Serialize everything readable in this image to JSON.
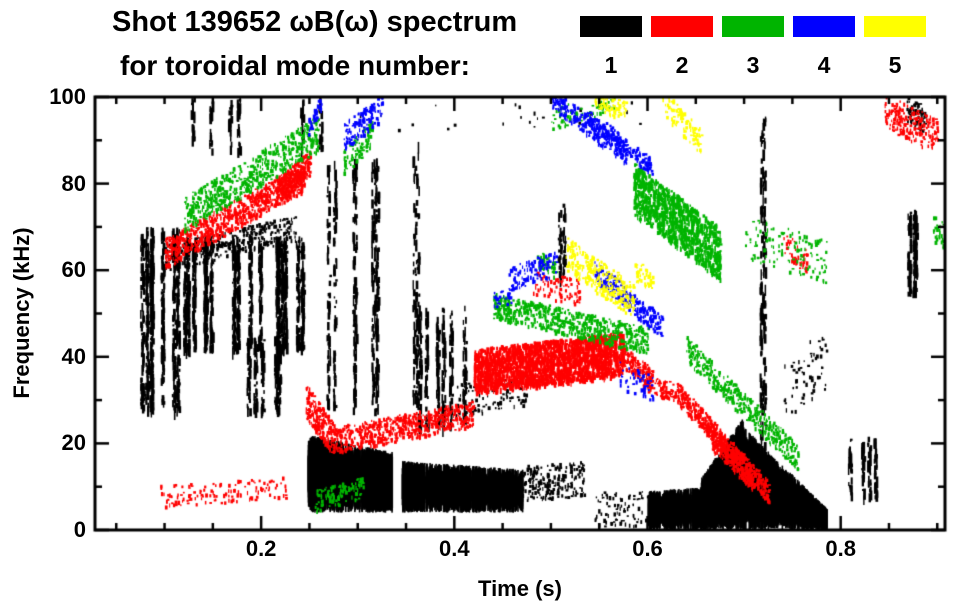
{
  "chart_data": {
    "type": "scatter",
    "subtype": "mode-spectrogram",
    "title": "Shot 139652 ωB(ω) spectrum",
    "subtitle": "for toroidal mode number:",
    "xlabel": "Time (s)",
    "ylabel": "Frequency (kHz)",
    "xlim": [
      0.028,
      0.908
    ],
    "ylim": [
      0,
      100
    ],
    "grid": false,
    "legend_position": "top-right",
    "xticks": [
      {
        "v": 0.2,
        "label": "0.2"
      },
      {
        "v": 0.4,
        "label": "0.4"
      },
      {
        "v": 0.6,
        "label": "0.6"
      },
      {
        "v": 0.8,
        "label": "0.8"
      }
    ],
    "yticks": [
      {
        "v": 0,
        "label": "0"
      },
      {
        "v": 20,
        "label": "20"
      },
      {
        "v": 40,
        "label": "40"
      },
      {
        "v": 60,
        "label": "60"
      },
      {
        "v": 80,
        "label": "80"
      },
      {
        "v": 100,
        "label": "100"
      }
    ],
    "x_minor_step": 0.05,
    "y_minor_step": 10,
    "legend": [
      {
        "label": "1",
        "color": "#000000"
      },
      {
        "label": "2",
        "color": "#ff0000"
      },
      {
        "label": "3",
        "color": "#00b400"
      },
      {
        "label": "4",
        "color": "#0000ff"
      },
      {
        "label": "5",
        "color": "#ffff00"
      }
    ],
    "series": [
      {
        "name": "toroidal mode n=1",
        "color": "#000000",
        "segments": [
          {
            "kind": "streaks",
            "t": [
              0.075,
              0.118
            ],
            "f": [
              28,
              70
            ],
            "n": 7,
            "per": 90
          },
          {
            "kind": "streaks",
            "t": [
              0.118,
              0.245
            ],
            "f": [
              42,
              68
            ],
            "n": 16,
            "per": 70
          },
          {
            "kind": "speckle",
            "t": [
              0.1,
              0.235
            ],
            "f": [
              63,
              70
            ],
            "w": 3,
            "n": 350
          },
          {
            "kind": "streaks",
            "t": [
              0.185,
              0.245
            ],
            "f": [
              28,
              45
            ],
            "n": 5,
            "per": 40
          },
          {
            "kind": "streaks",
            "t": [
              0.09,
              0.27
            ],
            "f": [
              88,
              100
            ],
            "n": 6,
            "per": 18
          },
          {
            "kind": "blob",
            "t": [
              0.248,
              0.335
            ],
            "lo": [
              4,
              4
            ],
            "hi": [
              22,
              18
            ],
            "n": 900
          },
          {
            "kind": "blob",
            "t": [
              0.345,
              0.47
            ],
            "lo": [
              4,
              4
            ],
            "hi": [
              16,
              14
            ],
            "n": 900
          },
          {
            "kind": "speckle",
            "t": [
              0.47,
              0.535
            ],
            "f": [
              11,
              12
            ],
            "w": 4,
            "n": 200
          },
          {
            "kind": "streaks",
            "t": [
              0.252,
              0.335
            ],
            "f": [
              28,
              86
            ],
            "n": 7,
            "per": 55
          },
          {
            "kind": "streaks",
            "t": [
              0.355,
              0.41
            ],
            "f": [
              24,
              52
            ],
            "n": 6,
            "per": 45
          },
          {
            "kind": "streaks",
            "t": [
              0.356,
              0.368
            ],
            "f": [
              30,
              90
            ],
            "n": 2,
            "per": 50
          },
          {
            "kind": "speckle",
            "t": [
              0.4,
              0.475
            ],
            "f": [
              30,
              33
            ],
            "w": 4,
            "n": 120
          },
          {
            "kind": "speckle",
            "t": [
              0.545,
              0.6
            ],
            "f": [
              5,
              5
            ],
            "w": 4,
            "n": 80
          },
          {
            "kind": "blob",
            "t": [
              0.6,
              0.66
            ],
            "lo": [
              0,
              0
            ],
            "hi": [
              9,
              10
            ],
            "n": 500
          },
          {
            "kind": "blob",
            "t": [
              0.655,
              0.698
            ],
            "lo": [
              0,
              0
            ],
            "hi": [
              12,
              26
            ],
            "n": 650
          },
          {
            "kind": "blob",
            "t": [
              0.698,
              0.785
            ],
            "lo": [
              0,
              0
            ],
            "hi": [
              24,
              5
            ],
            "n": 800
          },
          {
            "kind": "streaks",
            "t": [
              0.715,
              0.728
            ],
            "f": [
              4,
              96
            ],
            "n": 2,
            "per": 90
          },
          {
            "kind": "speckle",
            "t": [
              0.74,
              0.785
            ],
            "f": [
              32,
              40
            ],
            "w": 7,
            "n": 60
          },
          {
            "kind": "streaks",
            "t": [
              0.805,
              0.845
            ],
            "f": [
              8,
              22
            ],
            "n": 4,
            "per": 25
          },
          {
            "kind": "streaks",
            "t": [
              0.862,
              0.882
            ],
            "f": [
              55,
              74
            ],
            "n": 3,
            "per": 45
          },
          {
            "kind": "speckle",
            "t": [
              0.868,
              0.888
            ],
            "f": [
              97,
              95
            ],
            "w": 3,
            "n": 70
          },
          {
            "kind": "streaks",
            "t": [
              0.5,
              0.515
            ],
            "f": [
              58,
              76
            ],
            "n": 2,
            "per": 25
          },
          {
            "kind": "speckle",
            "t": [
              0.3,
              0.6
            ],
            "f": [
              95,
              97
            ],
            "w": 3,
            "n": 25
          }
        ]
      },
      {
        "name": "toroidal mode n=2",
        "color": "#ff0000",
        "segments": [
          {
            "kind": "speckle",
            "t": [
              0.095,
              0.225
            ],
            "f": [
              8,
              10
            ],
            "w": 2.5,
            "n": 130
          },
          {
            "kind": "speckle",
            "t": [
              0.1,
              0.245
            ],
            "f": [
              64,
              82
            ],
            "w": 3.5,
            "n": 800
          },
          {
            "kind": "speckle",
            "t": [
              0.215,
              0.25
            ],
            "f": [
              78,
              85
            ],
            "w": 3,
            "n": 250
          },
          {
            "kind": "speckle",
            "t": [
              0.246,
              0.275
            ],
            "f": [
              30,
              21
            ],
            "w": 4,
            "n": 200
          },
          {
            "kind": "speckle",
            "t": [
              0.275,
              0.42
            ],
            "f": [
              21,
              27
            ],
            "w": 3,
            "n": 600
          },
          {
            "kind": "speckle",
            "t": [
              0.42,
              0.575
            ],
            "f": [
              37,
              41
            ],
            "w": 5,
            "n": 2000,
            "sz": 1.5
          },
          {
            "kind": "speckle",
            "t": [
              0.575,
              0.605
            ],
            "f": [
              40,
              35
            ],
            "w": 2.5,
            "n": 150
          },
          {
            "kind": "speckle",
            "t": [
              0.595,
              0.63
            ],
            "f": [
              34,
              32
            ],
            "w": 2,
            "n": 90
          },
          {
            "kind": "speckle",
            "t": [
              0.63,
              0.725
            ],
            "f": [
              32,
              9
            ],
            "w": 2.5,
            "n": 500
          },
          {
            "kind": "speckle",
            "t": [
              0.665,
              0.71
            ],
            "f": [
              22,
              12
            ],
            "w": 3,
            "n": 300
          },
          {
            "kind": "speckle",
            "t": [
              0.845,
              0.9
            ],
            "f": [
              97,
              91
            ],
            "w": 4,
            "n": 200
          },
          {
            "kind": "speckle",
            "t": [
              0.48,
              0.53
            ],
            "f": [
              57,
              55
            ],
            "w": 3,
            "n": 80
          },
          {
            "kind": "speckle",
            "t": [
              0.74,
              0.765
            ],
            "f": [
              66,
              62
            ],
            "w": 3,
            "n": 50
          }
        ]
      },
      {
        "name": "toroidal mode n=3",
        "color": "#00b400",
        "segments": [
          {
            "kind": "speckle",
            "t": [
              0.12,
              0.26
            ],
            "f": [
              73,
              92
            ],
            "w": 4,
            "n": 600
          },
          {
            "kind": "speckle",
            "t": [
              0.255,
              0.305
            ],
            "f": [
              7,
              10
            ],
            "w": 2.5,
            "n": 100
          },
          {
            "kind": "speckle",
            "t": [
              0.285,
              0.315
            ],
            "f": [
              85,
              92
            ],
            "w": 3,
            "n": 90
          },
          {
            "kind": "speckle",
            "t": [
              0.44,
              0.6
            ],
            "f": [
              52,
              44
            ],
            "w": 3,
            "n": 650
          },
          {
            "kind": "speckle",
            "t": [
              0.585,
              0.675
            ],
            "f": [
              79,
              64
            ],
            "w": 6,
            "n": 1100,
            "sz": 1.3
          },
          {
            "kind": "speckle",
            "t": [
              0.64,
              0.755
            ],
            "f": [
              42,
              17
            ],
            "w": 3,
            "n": 400
          },
          {
            "kind": "speckle",
            "t": [
              0.7,
              0.785
            ],
            "f": [
              68,
              62
            ],
            "w": 5,
            "n": 120
          },
          {
            "kind": "speckle",
            "t": [
              0.5,
              0.565
            ],
            "f": [
              95,
              99
            ],
            "w": 2.5,
            "n": 80
          },
          {
            "kind": "speckle",
            "t": [
              0.485,
              0.505
            ],
            "f": [
              63,
              60
            ],
            "w": 2,
            "n": 40
          },
          {
            "kind": "speckle",
            "t": [
              0.895,
              0.908
            ],
            "f": [
              70,
              68
            ],
            "w": 3,
            "n": 30
          }
        ]
      },
      {
        "name": "toroidal mode n=4",
        "color": "#0000ff",
        "segments": [
          {
            "kind": "speckle",
            "t": [
              0.285,
              0.325
            ],
            "f": [
              91,
              98
            ],
            "w": 3,
            "n": 130
          },
          {
            "kind": "speckle",
            "t": [
              0.248,
              0.262
            ],
            "f": [
              93,
              99
            ],
            "w": 2,
            "n": 40
          },
          {
            "kind": "speckle",
            "t": [
              0.455,
              0.505
            ],
            "f": [
              58,
              62
            ],
            "w": 3,
            "n": 110
          },
          {
            "kind": "speckle",
            "t": [
              0.5,
              0.578
            ],
            "f": [
              100,
              87
            ],
            "w": 2.5,
            "n": 280
          },
          {
            "kind": "speckle",
            "t": [
              0.535,
              0.605
            ],
            "f": [
              96,
              84
            ],
            "w": 2,
            "n": 160
          },
          {
            "kind": "speckle",
            "t": [
              0.545,
              0.615
            ],
            "f": [
              60,
              47
            ],
            "w": 2.5,
            "n": 240
          },
          {
            "kind": "speckle",
            "t": [
              0.57,
              0.605
            ],
            "f": [
              36,
              33
            ],
            "w": 3,
            "n": 50
          },
          {
            "kind": "speckle",
            "t": [
              0.44,
              0.462
            ],
            "f": [
              53,
              55
            ],
            "w": 2,
            "n": 30
          }
        ]
      },
      {
        "name": "toroidal mode n=5",
        "color": "#ffff00",
        "segments": [
          {
            "kind": "speckle",
            "t": [
              0.515,
              0.585
            ],
            "f": [
              64,
              53
            ],
            "w": 4,
            "n": 300
          },
          {
            "kind": "speckle",
            "t": [
              0.545,
              0.578
            ],
            "f": [
              99,
              97
            ],
            "w": 2,
            "n": 70
          },
          {
            "kind": "speckle",
            "t": [
              0.615,
              0.655
            ],
            "f": [
              99,
              90
            ],
            "w": 3,
            "n": 100
          },
          {
            "kind": "speckle",
            "t": [
              0.585,
              0.605
            ],
            "f": [
              60,
              58
            ],
            "w": 2.5,
            "n": 40
          }
        ]
      }
    ]
  }
}
